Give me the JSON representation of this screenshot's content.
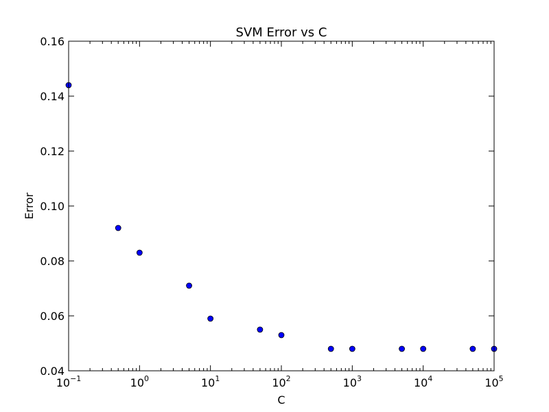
{
  "chart_data": {
    "type": "scatter",
    "title": "SVM Error vs C",
    "xlabel": "C",
    "ylabel": "Error",
    "xscale": "log",
    "xlim": [
      0.1,
      100000
    ],
    "ylim": [
      0.04,
      0.16
    ],
    "grid": false,
    "marker_color": "#0000ff",
    "x_ticks": [
      {
        "value": 0.1,
        "base": "10",
        "exp": "−1"
      },
      {
        "value": 1,
        "base": "10",
        "exp": "0"
      },
      {
        "value": 10,
        "base": "10",
        "exp": "1"
      },
      {
        "value": 100,
        "base": "10",
        "exp": "2"
      },
      {
        "value": 1000,
        "base": "10",
        "exp": "3"
      },
      {
        "value": 10000,
        "base": "10",
        "exp": "4"
      },
      {
        "value": 100000,
        "base": "10",
        "exp": "5"
      }
    ],
    "y_ticks": [
      {
        "value": 0.04,
        "label": "0.04"
      },
      {
        "value": 0.06,
        "label": "0.06"
      },
      {
        "value": 0.08,
        "label": "0.08"
      },
      {
        "value": 0.1,
        "label": "0.10"
      },
      {
        "value": 0.12,
        "label": "0.12"
      },
      {
        "value": 0.14,
        "label": "0.14"
      },
      {
        "value": 0.16,
        "label": "0.16"
      }
    ],
    "points": [
      {
        "x": 0.1,
        "y": 0.144
      },
      {
        "x": 0.5,
        "y": 0.092
      },
      {
        "x": 1,
        "y": 0.083
      },
      {
        "x": 5,
        "y": 0.071
      },
      {
        "x": 10,
        "y": 0.059
      },
      {
        "x": 50,
        "y": 0.055
      },
      {
        "x": 100,
        "y": 0.053
      },
      {
        "x": 500,
        "y": 0.048
      },
      {
        "x": 1000,
        "y": 0.048
      },
      {
        "x": 5000,
        "y": 0.048
      },
      {
        "x": 10000,
        "y": 0.048
      },
      {
        "x": 50000,
        "y": 0.048
      },
      {
        "x": 100000,
        "y": 0.048
      }
    ]
  }
}
